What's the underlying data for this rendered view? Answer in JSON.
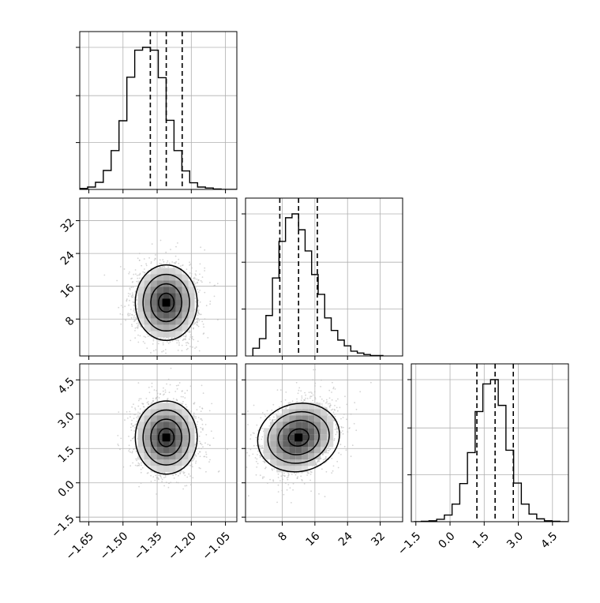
{
  "chart_data": {
    "type": "corner",
    "grid": true,
    "colors": {
      "line": "#000000",
      "scatter": "#b8b8b8",
      "grid": "#b0b0b0"
    },
    "variables": [
      {
        "mean": -1.31,
        "sd": 0.068,
        "quantiles": [
          -1.38,
          -1.31,
          -1.24
        ],
        "range": [
          -1.69,
          -1.0
        ],
        "ticks": [
          -1.65,
          -1.5,
          -1.35,
          -1.2,
          -1.05
        ],
        "tick_labels": [
          "−1.65",
          "−1.50",
          "−1.35",
          "−1.20",
          "−1.05"
        ],
        "hist_edges_start": -1.69,
        "hist_bin": 0.0345,
        "hist_counts": [
          2,
          5,
          15,
          40,
          82,
          145,
          237,
          294,
          300,
          294,
          236,
          146,
          82,
          39,
          14,
          5,
          3,
          1,
          0,
          0
        ]
      },
      {
        "mean": 12.0,
        "sd": 4.6,
        "quantiles": [
          7.4,
          12.0,
          16.6
        ],
        "range": [
          -1.0,
          37.5
        ],
        "ticks": [
          8,
          16,
          24,
          32
        ],
        "tick_labels": [
          "8",
          "16",
          "24",
          "32"
        ],
        "hist_edges_start": 0.8,
        "hist_bin": 1.6,
        "hist_counts": [
          16,
          36,
          84,
          162,
          238,
          287,
          295,
          262,
          218,
          169,
          128,
          79,
          53,
          33,
          21,
          10,
          6,
          3,
          1,
          1
        ]
      },
      {
        "mean": 1.98,
        "sd": 0.8,
        "quantiles": [
          1.18,
          1.98,
          2.78
        ],
        "range": [
          -1.7,
          5.2
        ],
        "ticks": [
          -1.5,
          0.0,
          1.5,
          3.0,
          4.5
        ],
        "tick_labels": [
          "−1.5",
          "0.0",
          "1.5",
          "3.0",
          "4.5"
        ],
        "hist_edges_start": -1.6,
        "hist_bin": 0.338,
        "hist_counts": [
          0,
          1,
          2,
          5,
          14,
          37,
          80,
          145,
          231,
          289,
          298,
          244,
          150,
          81,
          37,
          16,
          6,
          2,
          1,
          0
        ]
      }
    ],
    "pairs": [
      {
        "x_var": 0,
        "y_var": 1,
        "correlation": 0.0
      },
      {
        "x_var": 0,
        "y_var": 2,
        "correlation": 0.0
      },
      {
        "x_var": 1,
        "y_var": 2,
        "correlation": 0.25
      }
    ]
  }
}
